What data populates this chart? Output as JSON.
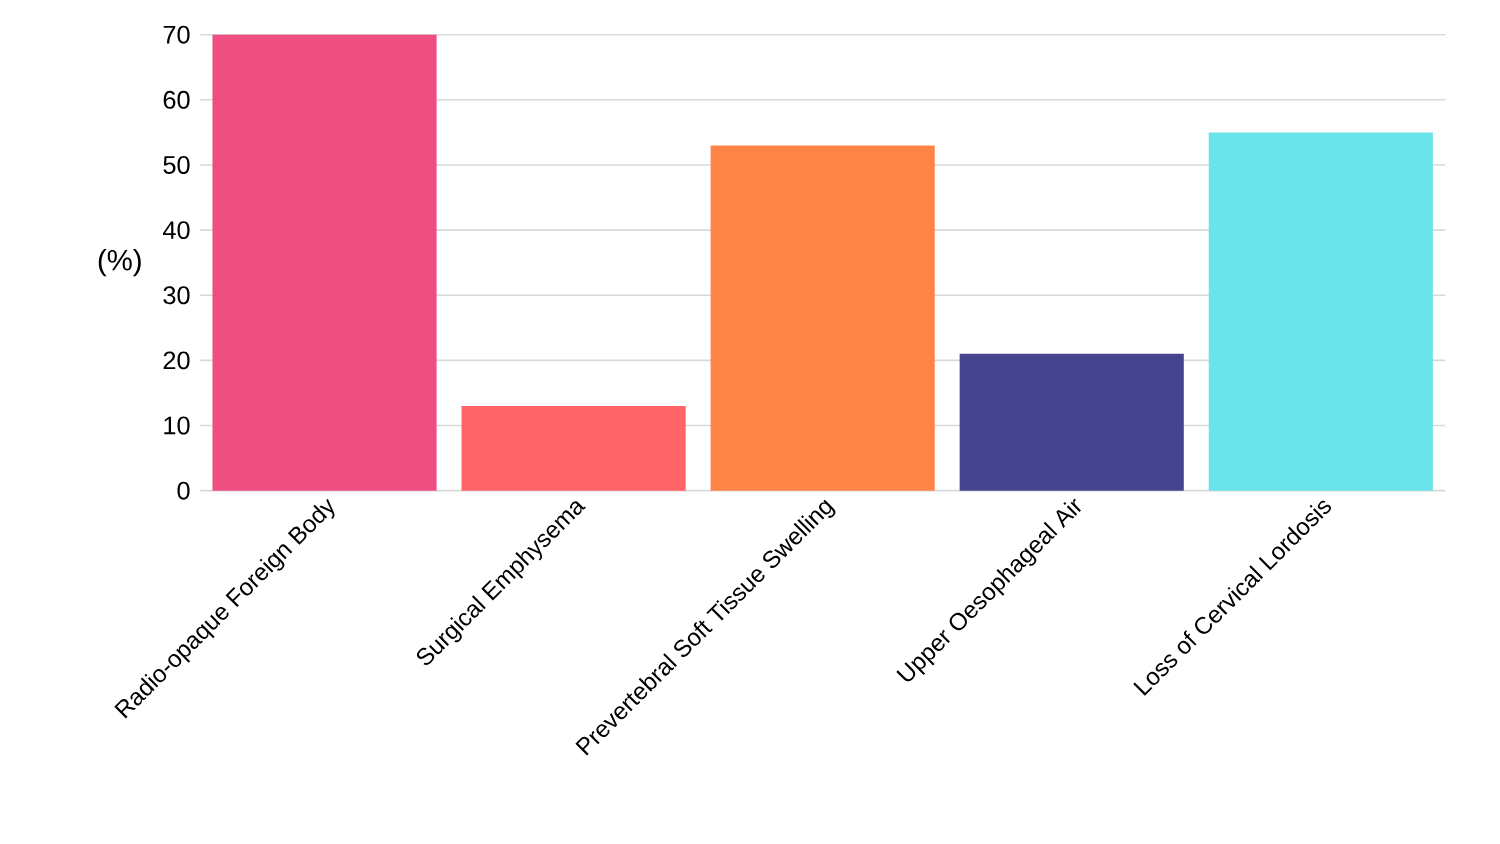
{
  "chart_data": {
    "type": "bar",
    "ylabel": "(%)",
    "categories": [
      "Radio-opaque Foreign Body",
      "Surgical Emphysema",
      "Prevertebral Soft Tissue Swelling",
      "Upper Oesophageal Air",
      "Loss of Cervical Lordosis"
    ],
    "values": [
      70,
      13,
      53,
      21,
      55
    ],
    "colors": [
      "#ee4f80",
      "#ff6468",
      "#ff8447",
      "#45458f",
      "#6ae4e8"
    ],
    "ylim": [
      0,
      70
    ],
    "yticks": [
      0,
      10,
      20,
      30,
      40,
      50,
      60,
      70
    ],
    "grid": "y"
  }
}
